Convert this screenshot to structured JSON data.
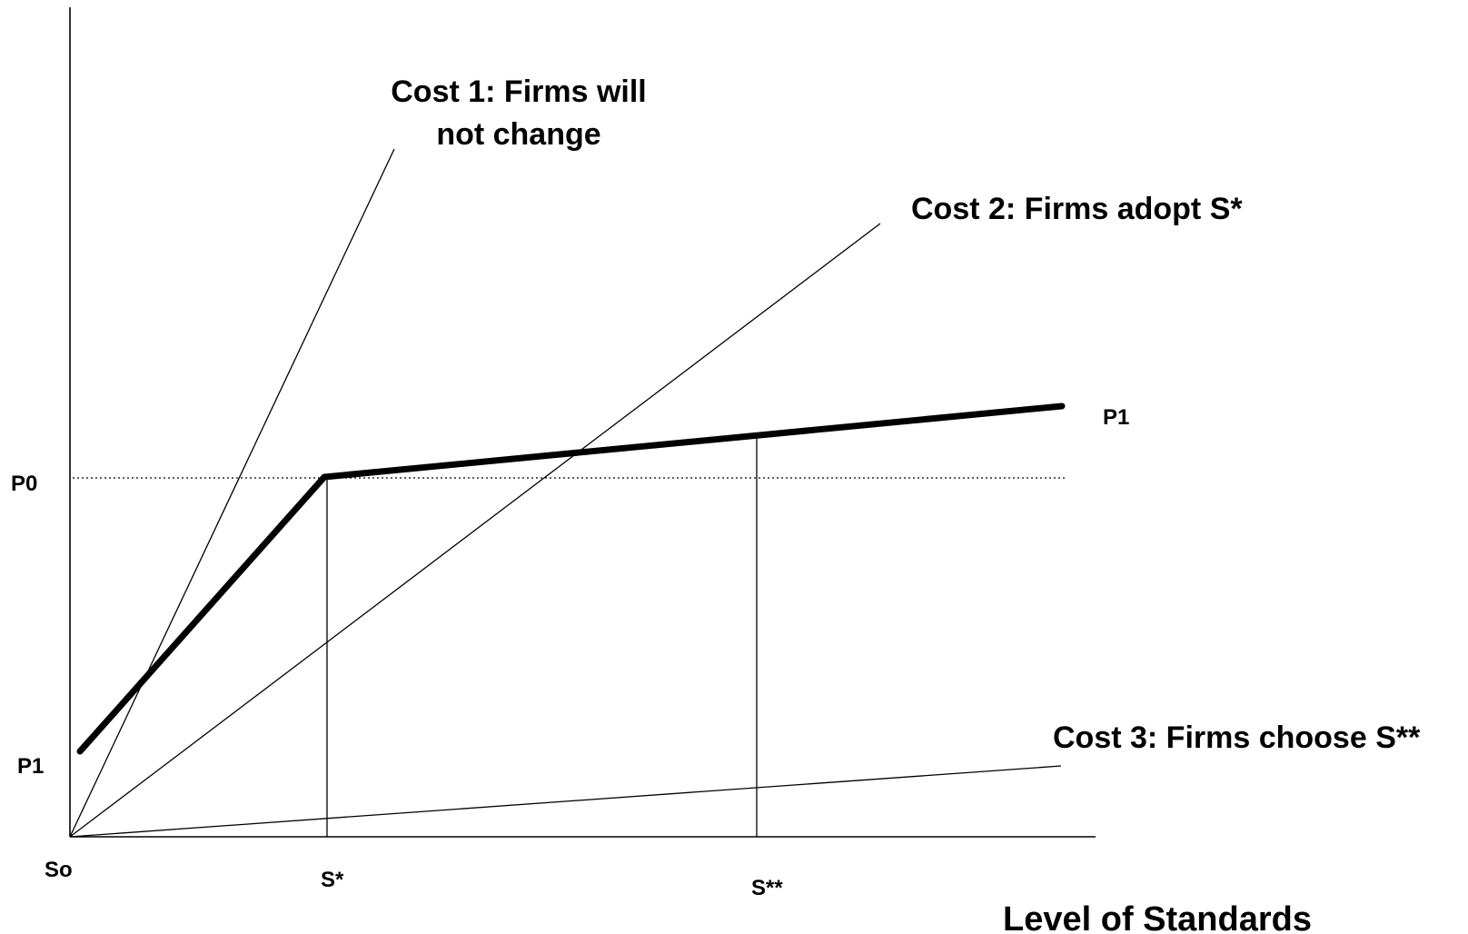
{
  "labels": {
    "cost1_line1": "Cost 1:  Firms will",
    "cost1_line2": "not change",
    "cost2": "Cost 2:  Firms adopt S*",
    "cost3": "Cost 3:  Firms choose S**",
    "p1_right": "P1",
    "p0": "P0",
    "p1_left": "P1",
    "so": "So",
    "s_star": "S*",
    "s_double_star": "S**",
    "x_axis_title": "Level of Standards"
  },
  "colors": {
    "ink": "#000000",
    "background": "#ffffff"
  }
}
